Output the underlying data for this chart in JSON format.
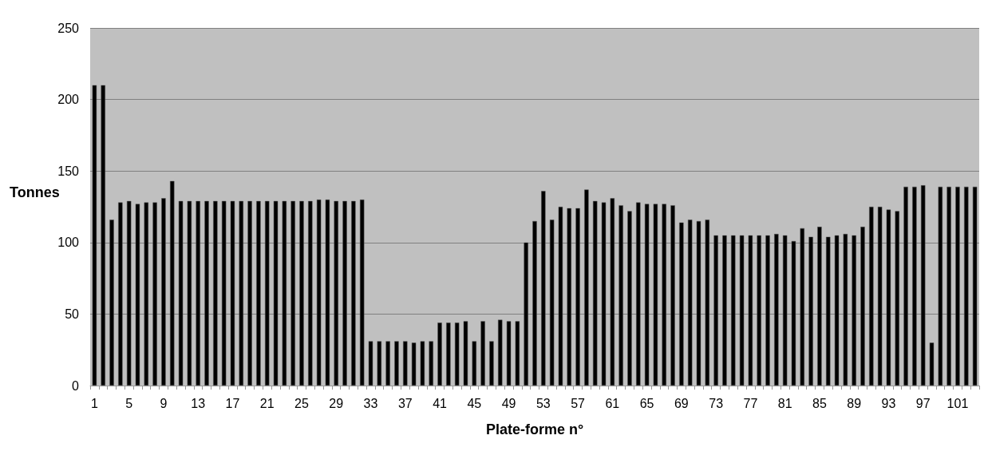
{
  "chart_data": {
    "type": "bar",
    "xlabel": "Plate-forme n°",
    "ylabel": "Tonnes",
    "categories": [
      "1",
      null,
      null,
      null,
      "5",
      null,
      null,
      null,
      "9",
      null,
      null,
      null,
      "13",
      null,
      null,
      null,
      "17",
      null,
      null,
      null,
      "21",
      null,
      null,
      null,
      "25",
      null,
      null,
      null,
      "29",
      null,
      null,
      null,
      "33",
      null,
      null,
      null,
      "37",
      null,
      null,
      null,
      "41",
      null,
      null,
      null,
      "45",
      null,
      null,
      null,
      "49",
      null,
      null,
      null,
      "53",
      null,
      null,
      null,
      "57",
      null,
      null,
      null,
      "61",
      null,
      null,
      null,
      "65",
      null,
      null,
      null,
      "69",
      null,
      null,
      null,
      "73",
      null,
      null,
      null,
      "77",
      null,
      null,
      null,
      "81",
      null,
      null,
      null,
      "85",
      null,
      null,
      null,
      "89",
      null,
      null,
      null,
      "93",
      null,
      null,
      null,
      "97",
      null,
      null,
      null,
      "101",
      null,
      null
    ],
    "values": [
      210,
      210,
      116,
      128,
      129,
      127,
      128,
      128,
      131,
      143,
      129,
      129,
      129,
      129,
      129,
      129,
      129,
      129,
      129,
      129,
      129,
      129,
      129,
      129,
      129,
      129,
      130,
      130,
      129,
      129,
      129,
      130,
      31,
      31,
      31,
      31,
      31,
      30,
      31,
      31,
      44,
      44,
      44,
      45,
      31,
      45,
      31,
      46,
      45,
      45,
      100,
      115,
      136,
      116,
      125,
      124,
      124,
      137,
      129,
      128,
      131,
      126,
      122,
      128,
      127,
      127,
      127,
      126,
      114,
      116,
      115,
      116,
      105,
      105,
      105,
      105,
      105,
      105,
      105,
      106,
      105,
      101,
      110,
      104,
      111,
      104,
      105,
      106,
      105,
      111,
      125,
      125,
      123,
      122,
      139,
      139,
      140,
      30,
      139,
      139,
      139,
      139,
      139
    ],
    "color": "#000000",
    "ylim": [
      0,
      250
    ],
    "yticks": [
      0,
      50,
      100,
      150,
      200,
      250
    ],
    "grid": "y"
  }
}
